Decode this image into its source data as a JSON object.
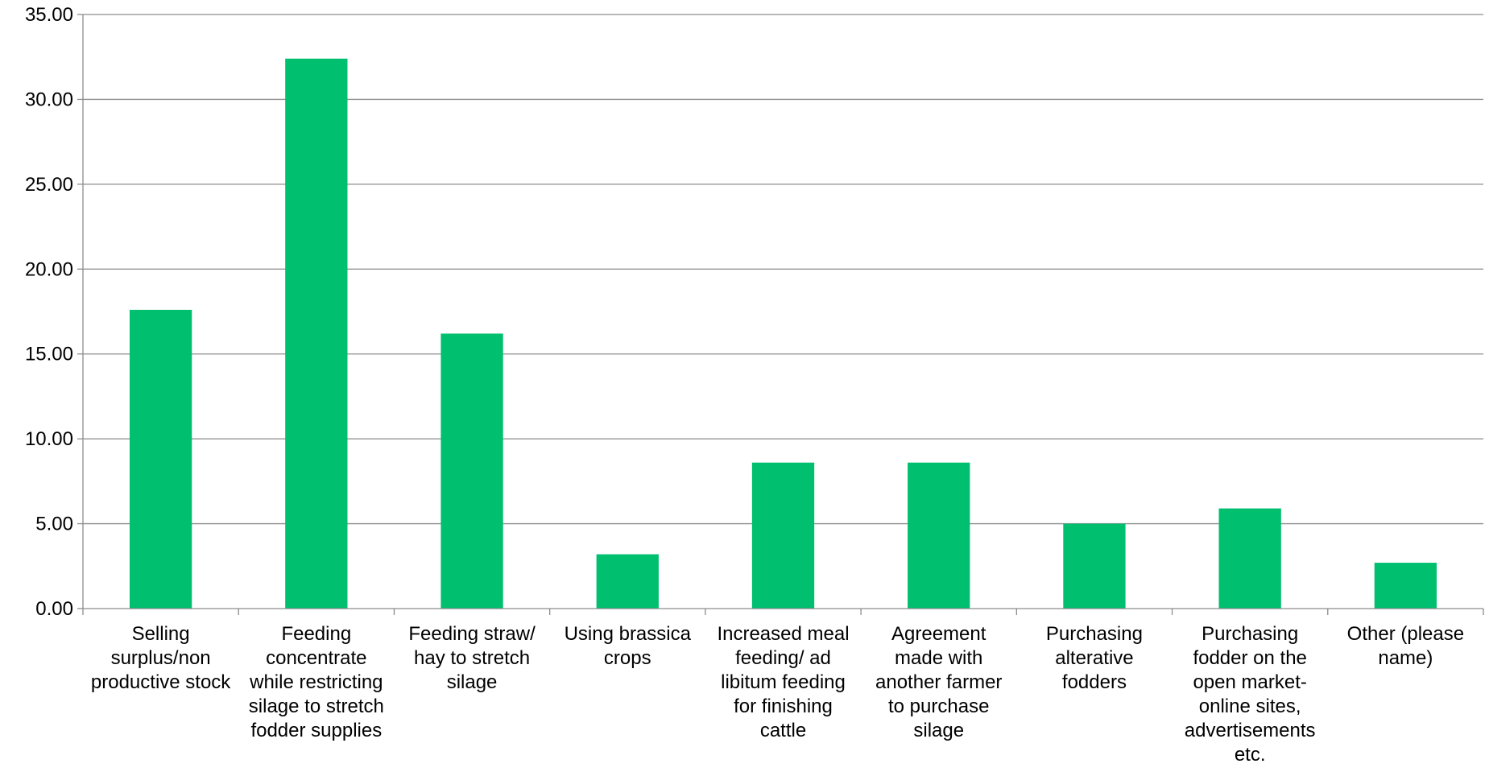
{
  "chart_data": {
    "type": "bar",
    "title": "",
    "xlabel": "",
    "ylabel": "",
    "ylim": [
      0,
      35
    ],
    "yticks": [
      "0.00",
      "5.00",
      "10.00",
      "15.00",
      "20.00",
      "25.00",
      "30.00",
      "35.00"
    ],
    "grid": true,
    "legend": "none",
    "bar_color": "#00BF6F",
    "categories": [
      [
        "Selling",
        "surplus/non",
        "productive stock"
      ],
      [
        "Feeding",
        "concentrate",
        "while restricting",
        "silage to stretch",
        "fodder supplies"
      ],
      [
        "Feeding straw/",
        "hay to stretch",
        "silage"
      ],
      [
        "Using brassica",
        "crops"
      ],
      [
        "Increased meal",
        "feeding/ ad",
        "libitum feeding",
        "for finishing",
        "cattle"
      ],
      [
        "Agreement",
        "made with",
        "another farmer",
        "to purchase",
        "silage"
      ],
      [
        "Purchasing",
        "alterative",
        "fodders"
      ],
      [
        "Purchasing",
        "fodder on the",
        "open market-",
        "online sites,",
        "advertisements",
        "etc."
      ],
      [
        "Other (please",
        "name)"
      ]
    ],
    "values": [
      17.6,
      32.4,
      16.2,
      3.2,
      8.6,
      8.6,
      5.0,
      5.9,
      2.7
    ]
  }
}
